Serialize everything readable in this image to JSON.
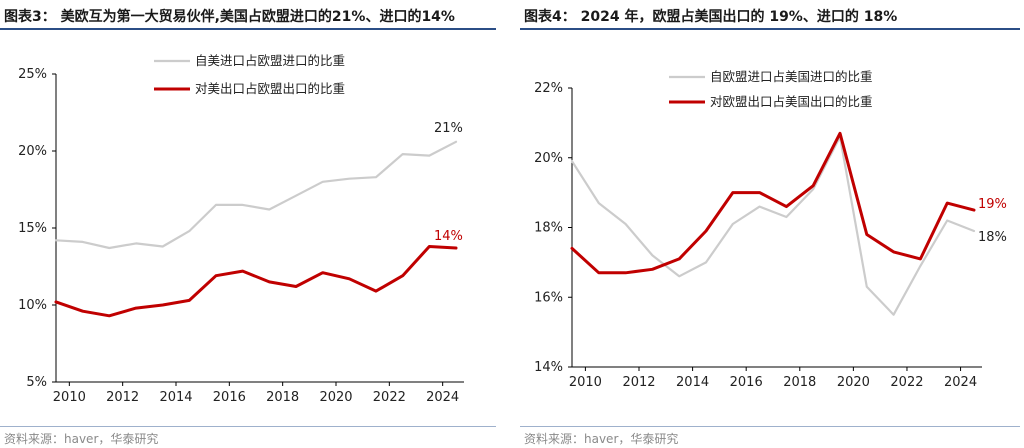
{
  "charts": [
    {
      "title": "图表3：  美欧互为第一大贸易伙伴,美国占欧盟进口的21%、进口的14%",
      "source": "资料来源：haver，华泰研究",
      "chart_data": {
        "type": "line",
        "title": "图表3：  美欧互为第一大贸易伙伴,美国占欧盟进口的21%、进口的14%",
        "xlabel": "",
        "ylabel": "",
        "xlim": [
          2009.5,
          2024.8
        ],
        "ylim": [
          5,
          25
        ],
        "yticks": [
          5,
          10,
          15,
          20,
          25
        ],
        "ytick_labels": [
          "5%",
          "10%",
          "15%",
          "20%",
          "25%"
        ],
        "xticks": [
          2010,
          2012,
          2014,
          2016,
          2018,
          2020,
          2022,
          2024
        ],
        "xtick_labels": [
          "2010",
          "2012",
          "2014",
          "2016",
          "2018",
          "2020",
          "2022",
          "2024"
        ],
        "legend_position": "top-right",
        "grid": false,
        "x": [
          2009.5,
          2010.5,
          2011.5,
          2012.5,
          2013.5,
          2014.5,
          2015.5,
          2016.5,
          2017.5,
          2018.5,
          2019.5,
          2020.5,
          2021.5,
          2022.5,
          2023.5,
          2024.5
        ],
        "series": [
          {
            "name": "自美进口占欧盟进口的比重",
            "color": "#cccccc",
            "values": [
              14.2,
              14.1,
              13.7,
              14.0,
              13.8,
              14.8,
              16.5,
              16.5,
              16.2,
              17.1,
              18.0,
              18.2,
              18.3,
              19.8,
              19.7,
              20.6
            ],
            "end_label": "21%"
          },
          {
            "name": "对美出口占欧盟出口的比重",
            "color": "#c00000",
            "values": [
              10.2,
              9.6,
              9.3,
              9.8,
              10.0,
              10.3,
              11.9,
              12.2,
              11.5,
              11.2,
              12.1,
              11.7,
              10.9,
              11.9,
              13.8,
              13.7
            ],
            "end_label": "14%"
          }
        ]
      }
    },
    {
      "title": "图表4：  2024 年，欧盟占美国出口的 19%、进口的 18%",
      "source": "资料来源：haver，华泰研究",
      "chart_data": {
        "type": "line",
        "title": "图表4：  2024 年，欧盟占美国出口的 19%、进口的 18%",
        "xlabel": "",
        "ylabel": "",
        "xlim": [
          2009.5,
          2024.8
        ],
        "ylim": [
          14,
          22
        ],
        "yticks": [
          14,
          16,
          18,
          20,
          22
        ],
        "ytick_labels": [
          "14%",
          "16%",
          "18%",
          "20%",
          "22%"
        ],
        "xticks": [
          2010,
          2012,
          2014,
          2016,
          2018,
          2020,
          2022,
          2024
        ],
        "xtick_labels": [
          "2010",
          "2012",
          "2014",
          "2016",
          "2018",
          "2020",
          "2022",
          "2024"
        ],
        "legend_position": "top-right",
        "grid": false,
        "x": [
          2009.5,
          2010.5,
          2011.5,
          2012.5,
          2013.5,
          2014.5,
          2015.5,
          2016.5,
          2017.5,
          2018.5,
          2019.5,
          2020.5,
          2021.5,
          2022.5,
          2023.5,
          2024.5
        ],
        "series": [
          {
            "name": "自欧盟进口占美国进口的比重",
            "color": "#cccccc",
            "values": [
              19.9,
              18.7,
              18.1,
              17.2,
              16.6,
              17.0,
              18.1,
              18.6,
              18.3,
              19.1,
              20.6,
              16.3,
              15.5,
              16.9,
              18.2,
              17.9
            ],
            "end_label": "18%"
          },
          {
            "name": "对欧盟出口占美国出口的比重",
            "color": "#c00000",
            "values": [
              17.4,
              16.7,
              16.7,
              16.8,
              17.1,
              17.9,
              19.0,
              19.0,
              18.6,
              19.2,
              20.7,
              17.8,
              17.3,
              17.1,
              18.7,
              18.5
            ],
            "end_label": "19%"
          }
        ]
      }
    }
  ]
}
